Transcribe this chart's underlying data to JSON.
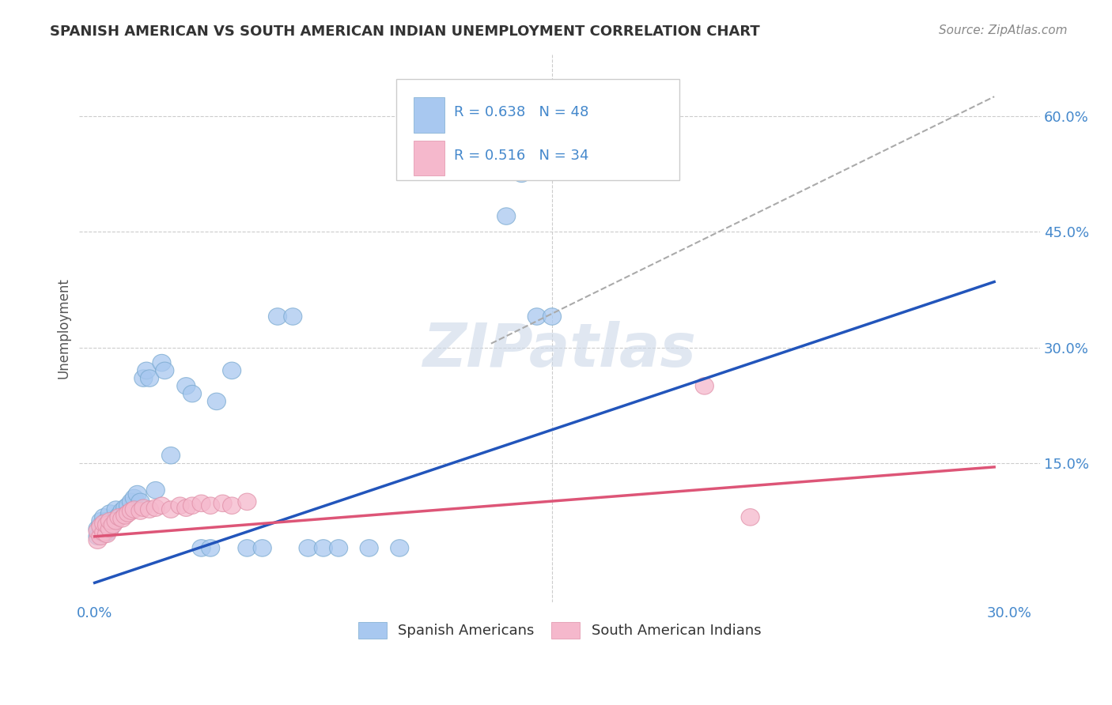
{
  "title": "SPANISH AMERICAN VS SOUTH AMERICAN INDIAN UNEMPLOYMENT CORRELATION CHART",
  "source": "Source: ZipAtlas.com",
  "ylabel": "Unemployment",
  "xlim": [
    -0.005,
    0.31
  ],
  "ylim": [
    -0.03,
    0.68
  ],
  "background_color": "#ffffff",
  "grid_color": "#cccccc",
  "blue_fill": "#a8c8f0",
  "blue_edge": "#7aaad0",
  "pink_fill": "#f5b8cc",
  "pink_edge": "#e090a8",
  "blue_line_color": "#2255bb",
  "pink_line_color": "#dd5577",
  "dashed_line_color": "#aaaaaa",
  "tick_label_color": "#4488cc",
  "title_color": "#333333",
  "source_color": "#888888",
  "ylabel_color": "#555555",
  "legend_text_color": "#333333",
  "legend_R_color": "#4488cc",
  "watermark_color": "#ccd8e8",
  "blue_trendline_x": [
    0.0,
    0.295
  ],
  "blue_trendline_y": [
    -0.005,
    0.385
  ],
  "pink_trendline_x": [
    0.0,
    0.295
  ],
  "pink_trendline_y": [
    0.055,
    0.145
  ],
  "dashed_trendline_x": [
    0.13,
    0.295
  ],
  "dashed_trendline_y": [
    0.305,
    0.625
  ],
  "grid_yticks": [
    0.15,
    0.3,
    0.45,
    0.6
  ],
  "grid_xtick_mid": 0.15,
  "right_ytick_labels": [
    "15.0%",
    "30.0%",
    "45.0%",
    "60.0%"
  ],
  "blue_x": [
    0.001,
    0.001,
    0.002,
    0.002,
    0.003,
    0.003,
    0.003,
    0.004,
    0.004,
    0.005,
    0.005,
    0.006,
    0.007,
    0.007,
    0.008,
    0.009,
    0.01,
    0.011,
    0.012,
    0.013,
    0.014,
    0.015,
    0.016,
    0.017,
    0.018,
    0.02,
    0.022,
    0.023,
    0.025,
    0.03,
    0.032,
    0.035,
    0.038,
    0.04,
    0.045,
    0.05,
    0.055,
    0.06,
    0.065,
    0.07,
    0.075,
    0.08,
    0.09,
    0.1,
    0.135,
    0.14,
    0.145,
    0.15
  ],
  "blue_y": [
    0.055,
    0.065,
    0.07,
    0.075,
    0.058,
    0.068,
    0.08,
    0.06,
    0.075,
    0.065,
    0.085,
    0.072,
    0.078,
    0.09,
    0.082,
    0.088,
    0.092,
    0.095,
    0.1,
    0.105,
    0.11,
    0.1,
    0.26,
    0.27,
    0.26,
    0.115,
    0.28,
    0.27,
    0.16,
    0.25,
    0.24,
    0.04,
    0.04,
    0.23,
    0.27,
    0.04,
    0.04,
    0.34,
    0.34,
    0.04,
    0.04,
    0.04,
    0.04,
    0.04,
    0.47,
    0.525,
    0.34,
    0.34
  ],
  "pink_x": [
    0.001,
    0.001,
    0.002,
    0.002,
    0.003,
    0.003,
    0.004,
    0.004,
    0.005,
    0.005,
    0.006,
    0.007,
    0.008,
    0.009,
    0.01,
    0.011,
    0.012,
    0.013,
    0.015,
    0.016,
    0.018,
    0.02,
    0.022,
    0.025,
    0.028,
    0.03,
    0.032,
    0.035,
    0.038,
    0.042,
    0.045,
    0.05,
    0.2,
    0.215
  ],
  "pink_y": [
    0.05,
    0.062,
    0.055,
    0.068,
    0.06,
    0.072,
    0.058,
    0.07,
    0.065,
    0.075,
    0.07,
    0.075,
    0.08,
    0.078,
    0.082,
    0.085,
    0.088,
    0.09,
    0.088,
    0.092,
    0.09,
    0.092,
    0.095,
    0.09,
    0.095,
    0.092,
    0.095,
    0.098,
    0.095,
    0.098,
    0.095,
    0.1,
    0.25,
    0.08
  ]
}
